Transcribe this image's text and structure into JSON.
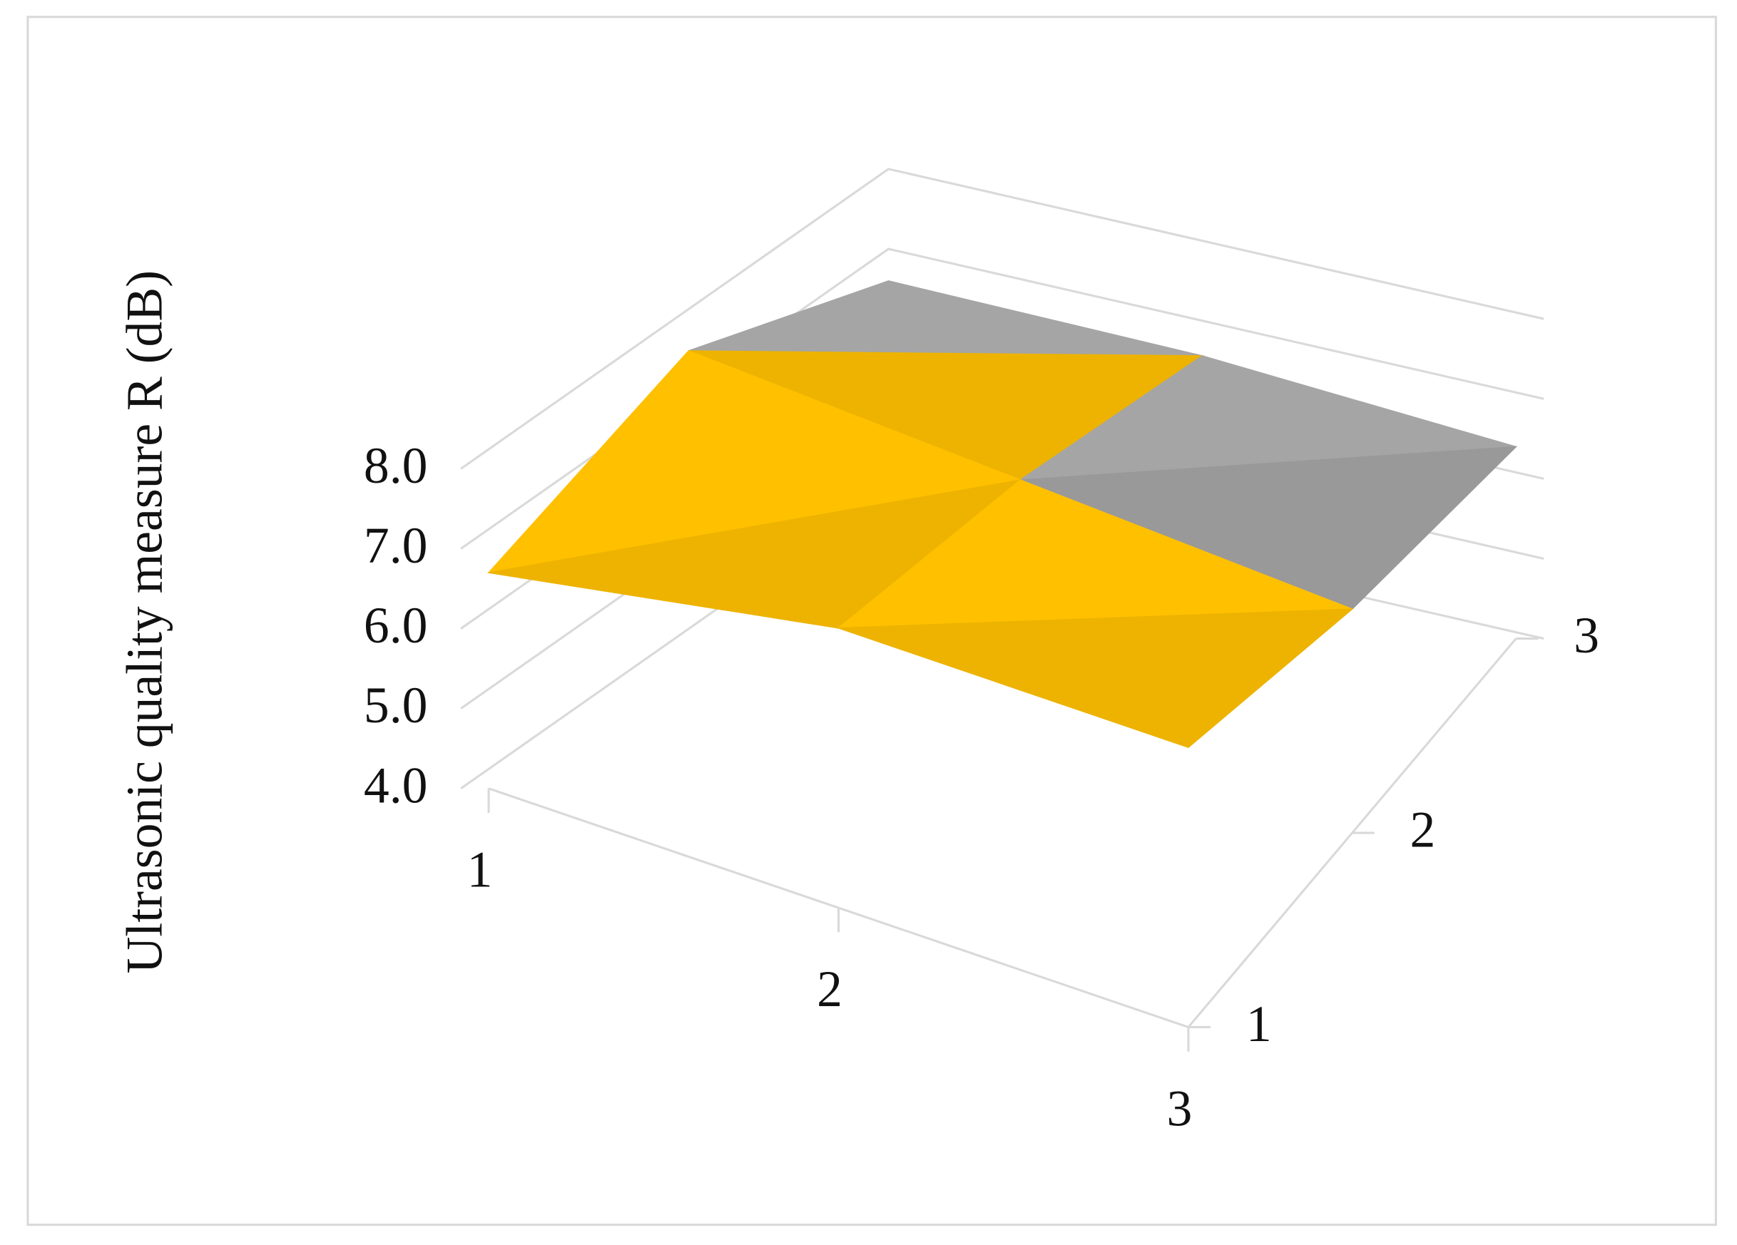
{
  "chart_data": {
    "type": "surface",
    "y_label": "Ultrasonic quality measure R (dB)",
    "categories": [
      "1",
      "2",
      "3"
    ],
    "series": [
      {
        "name": "1",
        "values": [
          6.7,
          7.5,
          7.5
        ]
      },
      {
        "name": "2",
        "values": [
          7.6,
          7.2,
          6.8
        ]
      },
      {
        "name": "3",
        "values": [
          6.6,
          6.6,
          6.4
        ]
      }
    ],
    "ylim": [
      4,
      8
    ],
    "yticks": [
      {
        "value": 4,
        "label": "4.0"
      },
      {
        "value": 5,
        "label": "5.0"
      },
      {
        "value": 6,
        "label": "6.0"
      },
      {
        "value": 7,
        "label": "7.0"
      },
      {
        "value": 8,
        "label": "8.0"
      }
    ],
    "band_colors": [
      "#4472c4",
      "#ed7d31",
      "#a5a5a5",
      "#ffc000"
    ],
    "grid": true
  }
}
